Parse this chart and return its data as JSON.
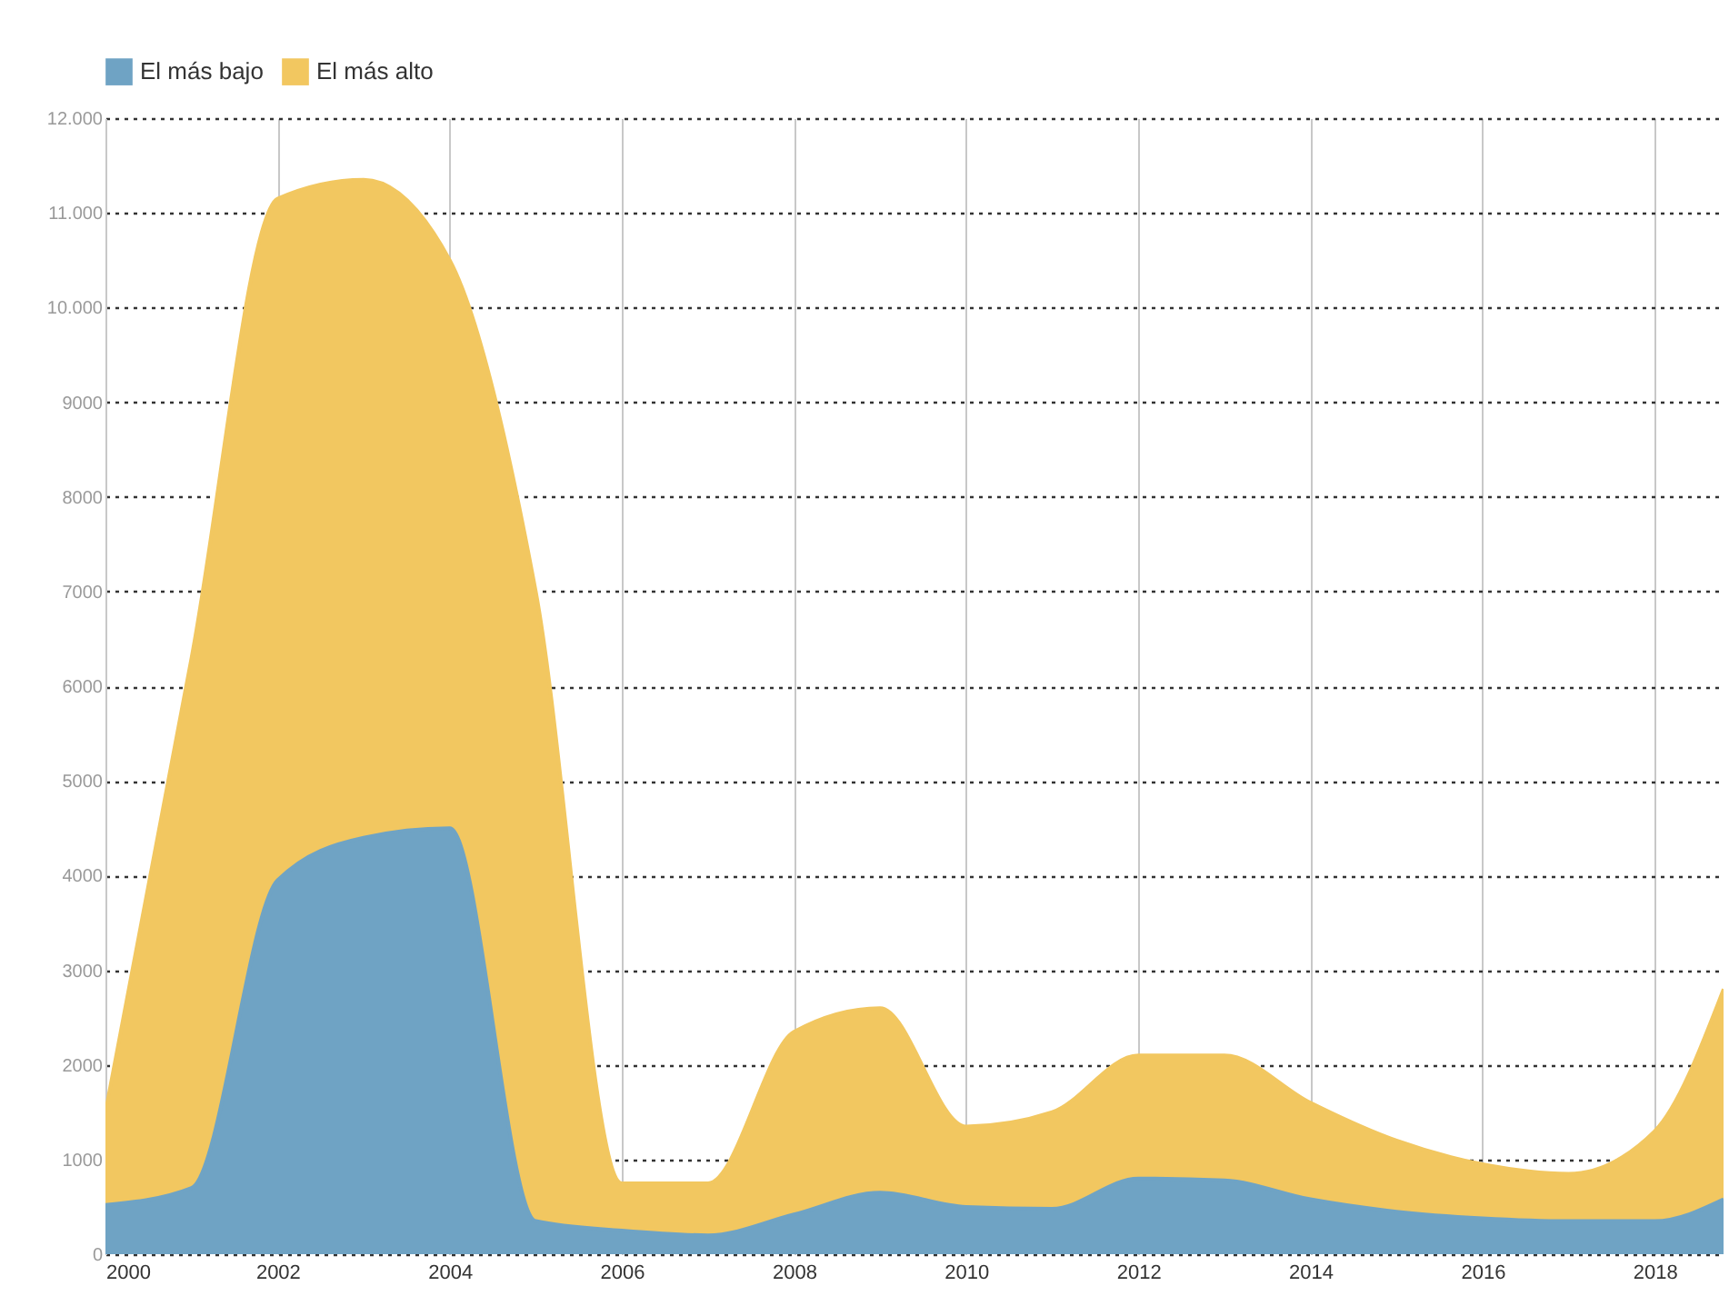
{
  "chart_data": {
    "type": "area",
    "legend": "top left",
    "grid": true,
    "xlim": [
      2000,
      2018.8
    ],
    "xticks": [
      2000,
      2002,
      2004,
      2006,
      2008,
      2010,
      2012,
      2014,
      2016,
      2018
    ],
    "ylim": [
      0,
      12000
    ],
    "yticks": [
      0,
      1000,
      2000,
      3000,
      4000,
      5000,
      6000,
      7000,
      8000,
      9000,
      {
        "value": 10000,
        "label": "10.000"
      },
      {
        "value": 11000,
        "label": "11.000"
      },
      {
        "value": 12000,
        "label": "12.000"
      }
    ],
    "series": [
      {
        "name": "El más bajo",
        "color": "#6fa3c4",
        "x": [
          2000,
          2001,
          2002,
          2003,
          2004,
          2005,
          2006,
          2007,
          2008,
          2009,
          2010,
          2011,
          2012,
          2013,
          2014,
          2015,
          2016,
          2017,
          2018,
          2018.8
        ],
        "values": [
          520,
          700,
          3950,
          4400,
          4500,
          350,
          250,
          200,
          420,
          650,
          500,
          480,
          800,
          780,
          580,
          450,
          380,
          350,
          350,
          580
        ]
      },
      {
        "name": "El más alto",
        "color": "#f2c760",
        "x": [
          2000,
          2001,
          2002,
          2003,
          2004,
          2005,
          2006,
          2007,
          2008,
          2009,
          2010,
          2011,
          2012,
          2013,
          2014,
          2015,
          2016,
          2017,
          2018,
          2018.8
        ],
        "values": [
          1500,
          6300,
          11150,
          11350,
          10500,
          7000,
          750,
          750,
          2350,
          2600,
          1350,
          1500,
          2100,
          2100,
          1600,
          1200,
          950,
          850,
          1300,
          2800
        ]
      }
    ]
  }
}
